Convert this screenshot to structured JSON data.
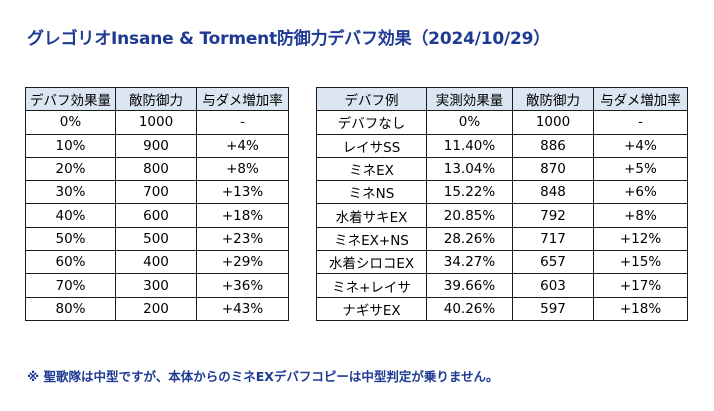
{
  "title": "グレゴリオInsane & Torment防御力デバフ効果（2024/10/29）",
  "left_table": {
    "headers": [
      "デバフ効果量",
      "敵防御力",
      "与ダメ増加率"
    ],
    "rows": [
      [
        "0%",
        "1000",
        "-"
      ],
      [
        "10%",
        "900",
        "+4%"
      ],
      [
        "20%",
        "800",
        "+8%"
      ],
      [
        "30%",
        "700",
        "+13%"
      ],
      [
        "40%",
        "600",
        "+18%"
      ],
      [
        "50%",
        "500",
        "+23%"
      ],
      [
        "60%",
        "400",
        "+29%"
      ],
      [
        "70%",
        "300",
        "+36%"
      ],
      [
        "80%",
        "200",
        "+43%"
      ]
    ]
  },
  "right_table": {
    "headers": [
      "デバフ例",
      "実測効果量",
      "敵防御力",
      "与ダメ増加率"
    ],
    "rows": [
      [
        "デバフなし",
        "0%",
        "1000",
        "-"
      ],
      [
        "レイサSS",
        "11.40%",
        "886",
        "+4%"
      ],
      [
        "ミネEX",
        "13.04%",
        "870",
        "+5%"
      ],
      [
        "ミネNS",
        "15.22%",
        "848",
        "+6%"
      ],
      [
        "水着サキEX",
        "20.85%",
        "792",
        "+8%"
      ],
      [
        "ミネEX+NS",
        "28.26%",
        "717",
        "+12%"
      ],
      [
        "水着シロコEX",
        "34.27%",
        "657",
        "+15%"
      ],
      [
        "ミネ+レイサ",
        "39.66%",
        "603",
        "+17%"
      ],
      [
        "ナギサEX",
        "40.26%",
        "597",
        "+18%"
      ]
    ]
  },
  "note": "※ 聖歌隊は中型ですが、本体からのミネEXデバフコピーは中型判定が乗りません。",
  "colors": {
    "title": "#1f3a93",
    "header_bg": "#dbe6f2",
    "border": "#1a1a1a"
  }
}
